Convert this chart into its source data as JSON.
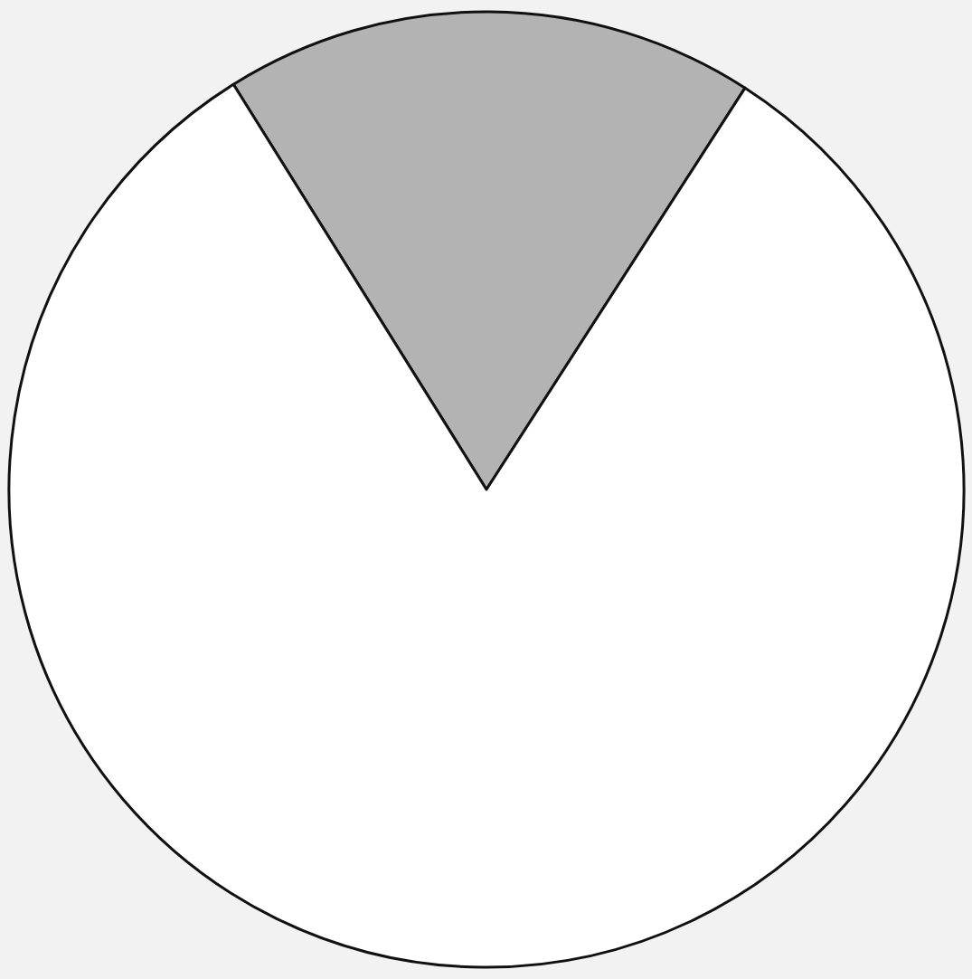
{
  "chart_data": {
    "type": "pie",
    "categories": [
      null,
      null
    ],
    "values": [
      18,
      82
    ],
    "colors": [
      "#b3b3b3",
      "#ffffff"
    ]
  }
}
